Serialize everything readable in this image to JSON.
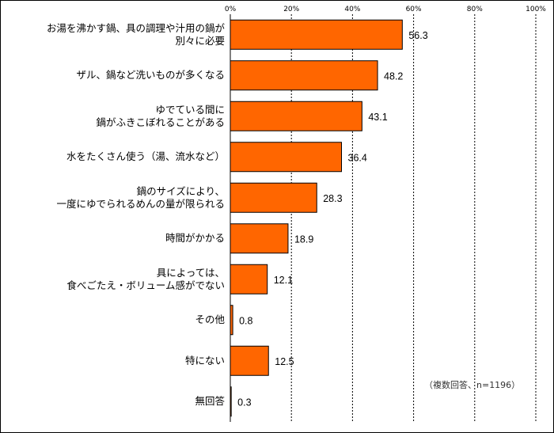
{
  "chart_data": {
    "type": "bar",
    "orientation": "horizontal",
    "categories": [
      "お湯を沸かす鍋、具の調理や汁用の鍋が\n別々に必要",
      "ザル、鍋など洗いものが多くなる",
      "ゆでている間に\n鍋がふきこぼれることがある",
      "水をたくさん使う（湯、流水など）",
      "鍋のサイズにより、\n一度にゆでられるめんの量が限られる",
      "時間がかかる",
      "具によっては、\n食べごたえ・ボリューム感がでない",
      "その他",
      "特にない",
      "無回答"
    ],
    "values": [
      56.3,
      48.2,
      43.1,
      36.4,
      28.3,
      18.9,
      12.1,
      0.8,
      12.5,
      0.3
    ],
    "value_labels": [
      "56.3",
      "48.2",
      "43.1",
      "36.4",
      "28.3",
      "18.9",
      "12.1",
      "0.8",
      "12.5",
      "0.3"
    ],
    "xlim": [
      0,
      100
    ],
    "tick_labels": [
      "0%",
      "20%",
      "40%",
      "60%",
      "80%",
      "100%"
    ],
    "tick_values": [
      0,
      20,
      40,
      60,
      80,
      100
    ],
    "grid": true,
    "bar_color": "#FF6600",
    "note": "（複数回答、n=1196）"
  }
}
